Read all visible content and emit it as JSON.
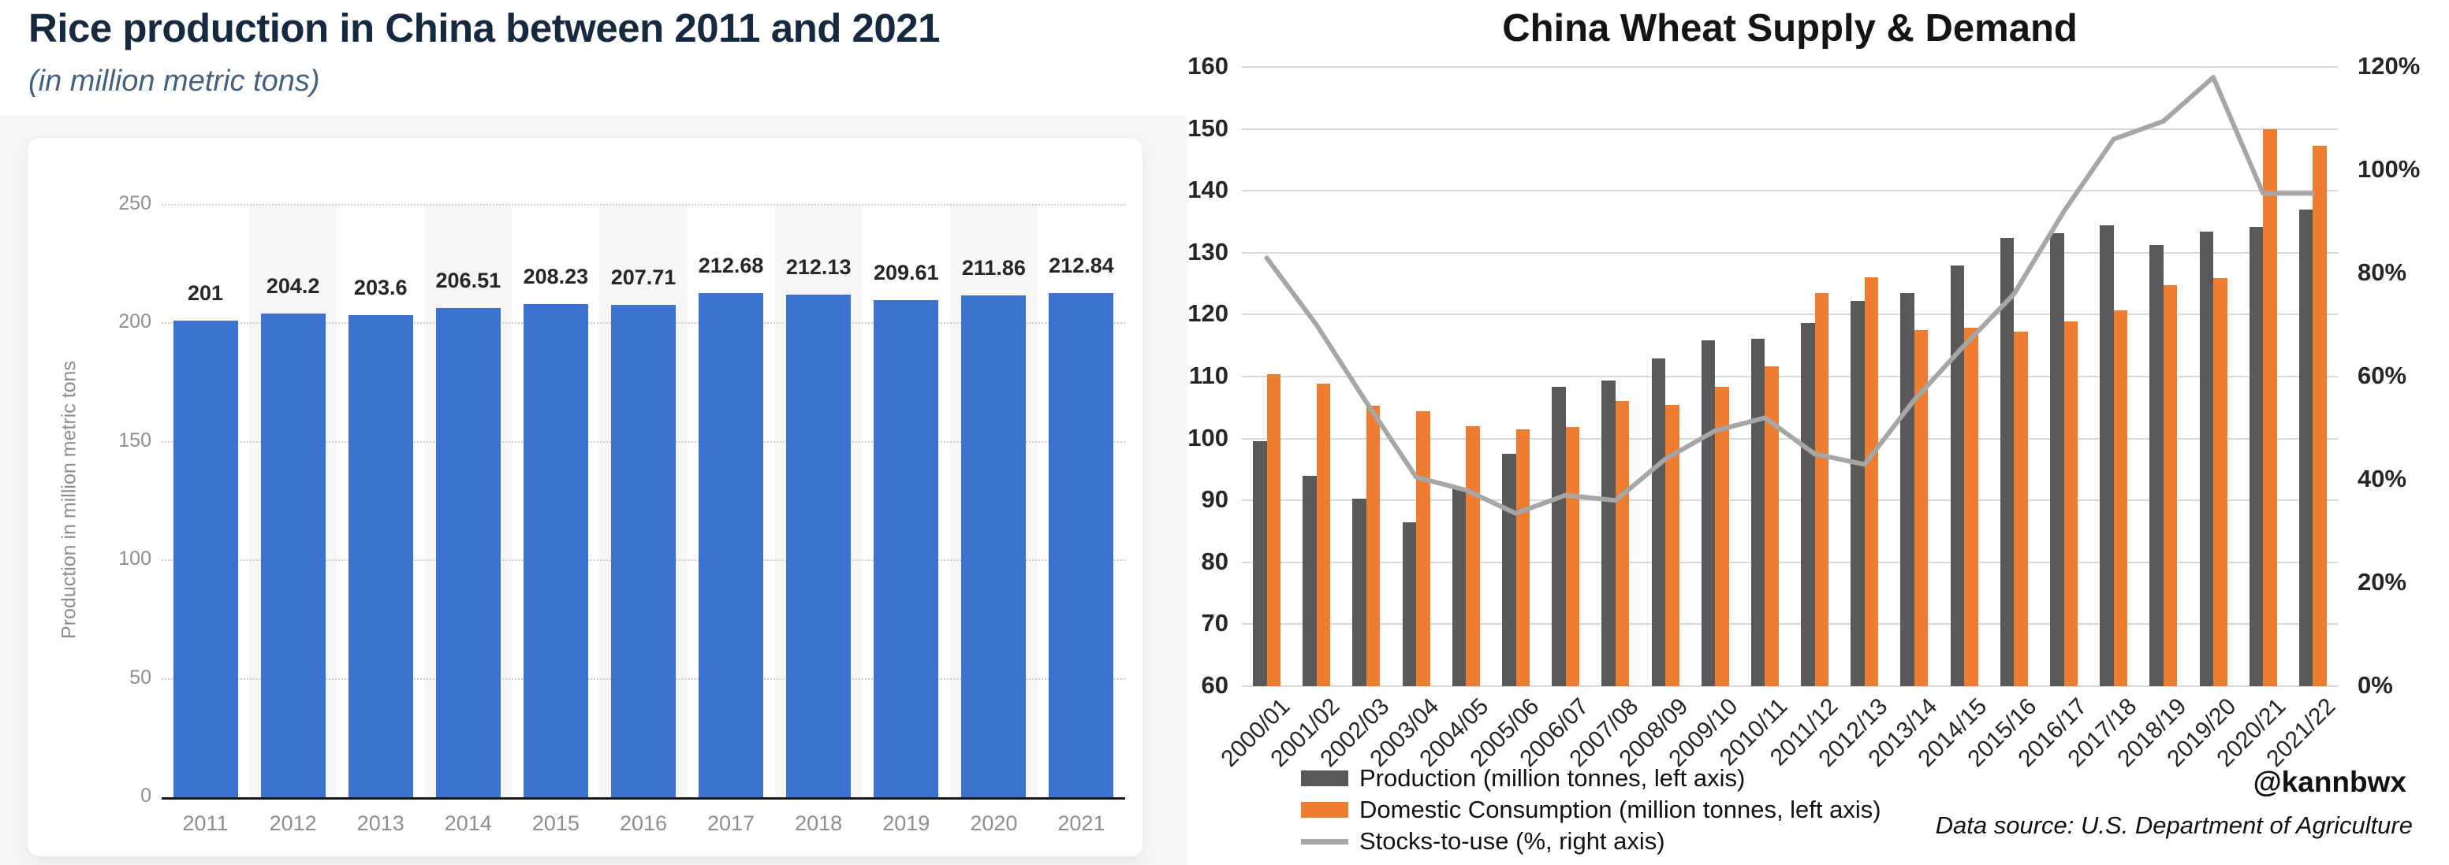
{
  "chart_data": [
    {
      "id": "rice-production",
      "type": "bar",
      "title": "Rice production in China between 2011 and 2021",
      "subtitle": "(in million metric tons)",
      "ylabel": "Production in million metric tons",
      "categories": [
        "2011",
        "2012",
        "2013",
        "2014",
        "2015",
        "2016",
        "2017",
        "2018",
        "2019",
        "2020",
        "2021"
      ],
      "values": [
        201,
        204.2,
        203.6,
        206.51,
        208.23,
        207.71,
        212.68,
        212.13,
        209.61,
        211.86,
        212.84
      ],
      "value_labels": [
        "201",
        "204.2",
        "203.6",
        "206.51",
        "208.23",
        "207.71",
        "212.68",
        "212.13",
        "209.61",
        "211.86",
        "212.84"
      ],
      "ylim": [
        0,
        250
      ],
      "yticks": [
        0,
        50,
        100,
        150,
        200,
        250
      ],
      "grid": "horizontal-dotted",
      "legend_position": "none",
      "bar_color": "#3E72D0",
      "band_color": "#f6f6f7",
      "axis_text_color": "#8e8e8e",
      "value_label_color": "#262626"
    },
    {
      "id": "china-wheat-supply-demand",
      "type": "bar+line",
      "title": "China Wheat Supply & Demand",
      "categories": [
        "2000/01",
        "2001/02",
        "2002/03",
        "2003/04",
        "2004/05",
        "2005/06",
        "2006/07",
        "2007/08",
        "2008/09",
        "2009/10",
        "2010/11",
        "2011/12",
        "2012/13",
        "2013/14",
        "2014/15",
        "2015/16",
        "2016/17",
        "2017/18",
        "2018/19",
        "2019/20",
        "2020/21",
        "2021/22"
      ],
      "series": [
        {
          "name": "Production (million tonnes, left axis)",
          "type": "bar",
          "axis": "left",
          "color": "#595959",
          "values": [
            99.6,
            94,
            90.3,
            86.5,
            91.9,
            97.5,
            108.3,
            109.4,
            112.9,
            115.8,
            116.1,
            118.6,
            122.2,
            123.5,
            128,
            132.4,
            133.2,
            134.4,
            131.3,
            133.4,
            134.2,
            137
          ]
        },
        {
          "name": "Domestic Consumption (million tonnes, left axis)",
          "type": "bar",
          "axis": "left",
          "color": "#ED7D31",
          "values": [
            110.4,
            108.9,
            105.3,
            104.4,
            102,
            101.5,
            101.9,
            106,
            105.4,
            108.4,
            111.7,
            123.5,
            126,
            117.5,
            117.9,
            117.3,
            118.9,
            120.7,
            124.8,
            125.9,
            150,
            147.3
          ]
        },
        {
          "name": "Stocks-to-use (%, right axis)",
          "type": "line",
          "axis": "right",
          "color": "#A6A6A6",
          "values": [
            83,
            70,
            55,
            40.5,
            38,
            33.5,
            37,
            36,
            44,
            49.5,
            52,
            45,
            43,
            55.5,
            66,
            76,
            92,
            106,
            109.5,
            118,
            95.5,
            95.5
          ]
        }
      ],
      "left_axis": {
        "lim": [
          60,
          160
        ],
        "ticks": [
          60,
          70,
          80,
          90,
          100,
          110,
          120,
          130,
          140,
          150,
          160
        ]
      },
      "right_axis": {
        "lim": [
          0,
          120
        ],
        "ticks": [
          0,
          20,
          40,
          60,
          80,
          100,
          120
        ],
        "format": "percent"
      },
      "grid": "horizontal-solid",
      "gridline_color": "#d9d9d9",
      "axis_text_color": "#262626",
      "legend_position": "bottom-left",
      "attribution": "@kannbwx",
      "source": "Data source: U.S. Department of Agriculture"
    }
  ]
}
